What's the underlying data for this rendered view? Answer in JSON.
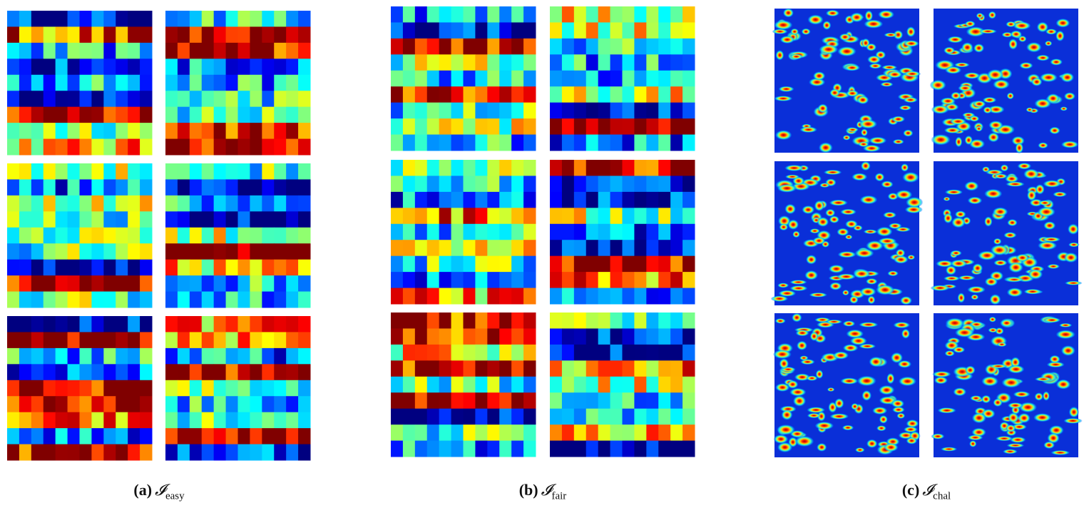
{
  "panels": [
    {
      "label": "(a)",
      "symbol": "𝓘",
      "subscript": "easy"
    },
    {
      "label": "(b)",
      "symbol": "𝓘",
      "subscript": "fair"
    },
    {
      "label": "(c)",
      "symbol": "𝓘",
      "subscript": "chal"
    }
  ]
}
